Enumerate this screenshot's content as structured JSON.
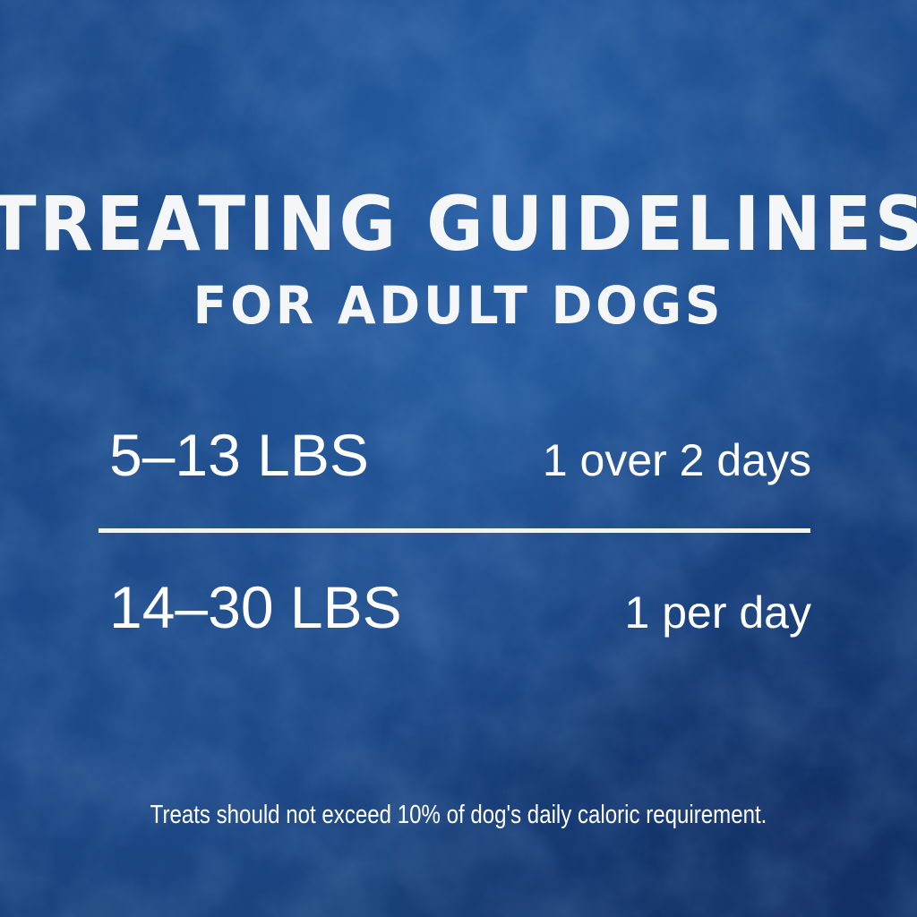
{
  "title": {
    "line1": "TREATING GUIDELINES",
    "line2": "FOR ADULT DOGS"
  },
  "rows": [
    {
      "weight": "5–13 LBS",
      "amount": "1 over 2 days"
    },
    {
      "weight": "14–30 LBS",
      "amount": "1 per day"
    }
  ],
  "footnote": "Treats should not exceed 10% of dog's daily caloric requirement.",
  "colors": {
    "background": "#1b4a88",
    "text": "#ffffff"
  }
}
